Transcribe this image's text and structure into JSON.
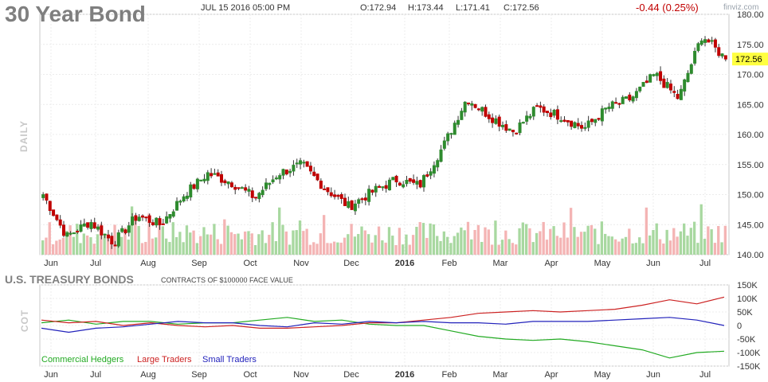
{
  "header": {
    "title": "30 Year Bond",
    "datetime": "JUL 15 2016 05:00 PM",
    "open": "O:172.94",
    "high": "H:173.44",
    "low": "L:171.41",
    "close": "C:172.56",
    "change": "-0.44 (0.25%)",
    "brand": "finviz.com"
  },
  "price_panel": {
    "side_label": "DAILY",
    "last_price_label": "172.56"
  },
  "cot_panel": {
    "title": "U.S. TREASURY BONDS",
    "subtitle": "CONTRACTS OF $100000 FACE VALUE",
    "side_label": "COT"
  },
  "colors": {
    "up": "#2e8b2e",
    "down": "#c00000",
    "up_volume": "#a8d8a0",
    "down_volume": "#f4b4b4",
    "commercial": "#22aa22",
    "large": "#cc2222",
    "small": "#2222bb",
    "last_price_bg": "#ffff40"
  },
  "chart_data": [
    {
      "type": "candlestick",
      "x_tick_labels": [
        "Jun",
        "Jul",
        "Aug",
        "Sep",
        "Oct",
        "Nov",
        "Dec",
        "2016",
        "Feb",
        "Mar",
        "Apr",
        "May",
        "Jun",
        "Jul"
      ],
      "y_tick_labels": [
        "180.00",
        "175.00",
        "170.00",
        "165.00",
        "160.00",
        "155.00",
        "150.00",
        "145.00",
        "140.00"
      ],
      "ylim": [
        140,
        180
      ],
      "grid": true,
      "close_keypoints": [
        [
          "Jun",
          150
        ],
        [
          "Jun",
          143
        ],
        [
          "Jun",
          145.5
        ],
        [
          "Jul",
          142
        ],
        [
          "Jul",
          146.5
        ],
        [
          "Jul",
          145
        ],
        [
          "Aug",
          150
        ],
        [
          "Aug",
          153.5
        ],
        [
          "Sep",
          152
        ],
        [
          "Sep",
          149.5
        ],
        [
          "Oct",
          153.5
        ],
        [
          "Oct",
          155
        ],
        [
          "Nov",
          151
        ],
        [
          "Nov",
          148
        ],
        [
          "Dec",
          150.5
        ],
        [
          "Dec",
          152.5
        ],
        [
          "2016",
          151.5
        ],
        [
          "Feb",
          158
        ],
        [
          "Feb",
          166
        ],
        [
          "Mar",
          163
        ],
        [
          "Mar",
          160.5
        ],
        [
          "Apr",
          164.5
        ],
        [
          "Apr",
          163
        ],
        [
          "May",
          161
        ],
        [
          "May",
          164.5
        ],
        [
          "Jun",
          166
        ],
        [
          "Jun",
          170
        ],
        [
          "Jun",
          166
        ],
        [
          "Jul",
          176.5
        ],
        [
          "Jul",
          172.56
        ]
      ],
      "volume_shown": true
    },
    {
      "type": "line",
      "x_tick_labels": [
        "Jun",
        "Jul",
        "Aug",
        "Sep",
        "Oct",
        "Nov",
        "Dec",
        "2016",
        "Feb",
        "Mar",
        "Apr",
        "May",
        "Jun",
        "Jul"
      ],
      "y_tick_labels": [
        "150K",
        "100K",
        "50K",
        "0",
        "-50K",
        "-100K",
        "-150K"
      ],
      "ylim": [
        -150000,
        150000
      ],
      "series": [
        {
          "name": "Commercial Hedgers",
          "values": [
            10000,
            20000,
            5000,
            15000,
            15000,
            5000,
            10000,
            10000,
            20000,
            30000,
            15000,
            20000,
            5000,
            0,
            0,
            -20000,
            -40000,
            -50000,
            -55000,
            -50000,
            -60000,
            -75000,
            -90000,
            -120000,
            -100000,
            -95000
          ]
        },
        {
          "name": "Large Traders",
          "values": [
            20000,
            10000,
            15000,
            0,
            10000,
            0,
            -5000,
            0,
            -10000,
            -10000,
            -5000,
            0,
            10000,
            10000,
            20000,
            30000,
            45000,
            50000,
            55000,
            50000,
            55000,
            60000,
            75000,
            95000,
            80000,
            105000
          ]
        },
        {
          "name": "Small Traders",
          "values": [
            -10000,
            -25000,
            -10000,
            -5000,
            5000,
            15000,
            10000,
            10000,
            0,
            -5000,
            10000,
            5000,
            15000,
            10000,
            15000,
            10000,
            10000,
            5000,
            15000,
            15000,
            15000,
            20000,
            25000,
            30000,
            20000,
            0
          ]
        }
      ]
    }
  ]
}
